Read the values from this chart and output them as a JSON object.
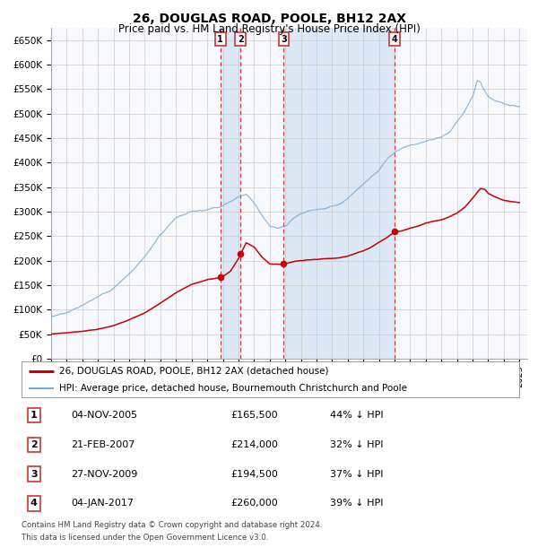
{
  "title": "26, DOUGLAS ROAD, POOLE, BH12 2AX",
  "subtitle": "Price paid vs. HM Land Registry's House Price Index (HPI)",
  "title_fontsize": 10,
  "subtitle_fontsize": 8.5,
  "ylim": [
    0,
    675000
  ],
  "yticks": [
    0,
    50000,
    100000,
    150000,
    200000,
    250000,
    300000,
    350000,
    400000,
    450000,
    500000,
    550000,
    600000,
    650000
  ],
  "ytick_labels": [
    "£0",
    "£50K",
    "£100K",
    "£150K",
    "£200K",
    "£250K",
    "£300K",
    "£350K",
    "£400K",
    "£450K",
    "£500K",
    "£550K",
    "£600K",
    "£650K"
  ],
  "xlim_start": 1995.0,
  "xlim_end": 2025.5,
  "background_color": "#ffffff",
  "plot_bg_color": "#f8f8ff",
  "grid_color": "#cccccc",
  "hpi_line_color": "#7aadd4",
  "price_line_color": "#cc0000",
  "sale_marker_color": "#cc0000",
  "dashed_line_color": "#cc3333",
  "shade_color": "#dce8f5",
  "transactions": [
    {
      "num": 1,
      "date": 2005.84,
      "price": 165500,
      "label": "1"
    },
    {
      "num": 2,
      "date": 2007.13,
      "price": 214000,
      "label": "2"
    },
    {
      "num": 3,
      "date": 2009.9,
      "price": 194500,
      "label": "3"
    },
    {
      "num": 4,
      "date": 2017.01,
      "price": 260000,
      "label": "4"
    }
  ],
  "table_rows": [
    {
      "num": "1",
      "date": "04-NOV-2005",
      "price": "£165,500",
      "pct": "44% ↓ HPI"
    },
    {
      "num": "2",
      "date": "21-FEB-2007",
      "price": "£214,000",
      "pct": "32% ↓ HPI"
    },
    {
      "num": "3",
      "date": "27-NOV-2009",
      "price": "£194,500",
      "pct": "37% ↓ HPI"
    },
    {
      "num": "4",
      "date": "04-JAN-2017",
      "price": "£260,000",
      "pct": "39% ↓ HPI"
    }
  ],
  "legend_entries": [
    "26, DOUGLAS ROAD, POOLE, BH12 2AX (detached house)",
    "HPI: Average price, detached house, Bournemouth Christchurch and Poole"
  ],
  "footnote1": "Contains HM Land Registry data © Crown copyright and database right 2024.",
  "footnote2": "This data is licensed under the Open Government Licence v3.0."
}
